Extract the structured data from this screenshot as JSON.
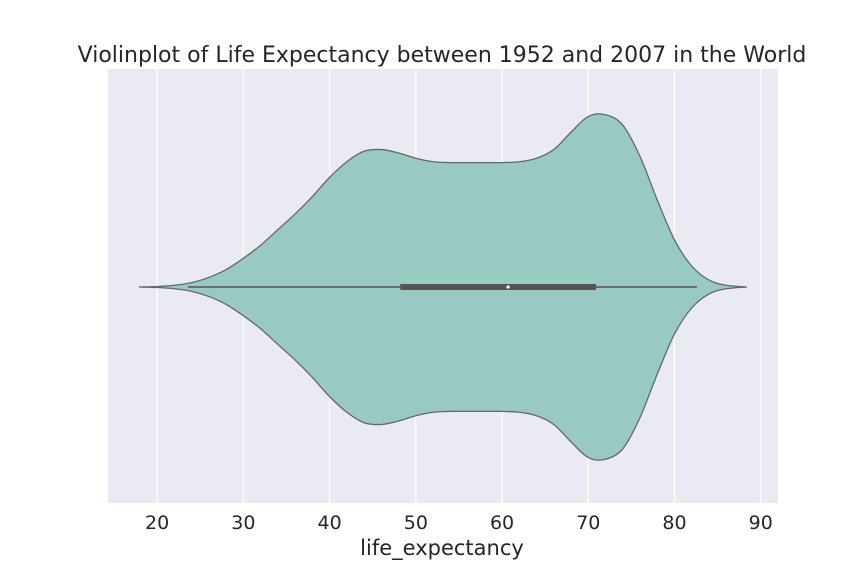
{
  "chart_data": {
    "type": "violin",
    "orientation": "horizontal",
    "title": "Violinplot of Life Expectancy between 1952 and 2007 in the World",
    "xlabel": "life_expectancy",
    "ylabel": "",
    "xlim": [
      14.3,
      92.0
    ],
    "xticks": [
      20,
      30,
      40,
      50,
      60,
      70,
      80,
      90
    ],
    "grid": true,
    "legend": "none",
    "colors": {
      "background": "#eaeaf2",
      "grid": "#ffffff",
      "violin_fill": "#98cac2",
      "violin_edge": "#666666",
      "box": "#555555",
      "median": "#ffffff"
    },
    "range": [
      17.9,
      88.4
    ],
    "whiskers": [
      23.6,
      82.6
    ],
    "quartiles": [
      48.2,
      60.7,
      70.9
    ],
    "median": 60.7,
    "density_profile": {
      "x": [
        17.9,
        20,
        22,
        24,
        26,
        28,
        30,
        32,
        34,
        36,
        38,
        40,
        42,
        44,
        46,
        48,
        50,
        52,
        54,
        56,
        58,
        60,
        62,
        64,
        66,
        68,
        70,
        72,
        74,
        76,
        78,
        80,
        82,
        84,
        86,
        88.4
      ],
      "width": [
        0.0,
        0.003,
        0.01,
        0.025,
        0.055,
        0.1,
        0.165,
        0.24,
        0.33,
        0.42,
        0.52,
        0.63,
        0.72,
        0.78,
        0.79,
        0.77,
        0.74,
        0.72,
        0.715,
        0.715,
        0.715,
        0.715,
        0.72,
        0.74,
        0.79,
        0.89,
        0.98,
        0.99,
        0.93,
        0.75,
        0.5,
        0.27,
        0.12,
        0.04,
        0.01,
        0.0
      ]
    }
  }
}
